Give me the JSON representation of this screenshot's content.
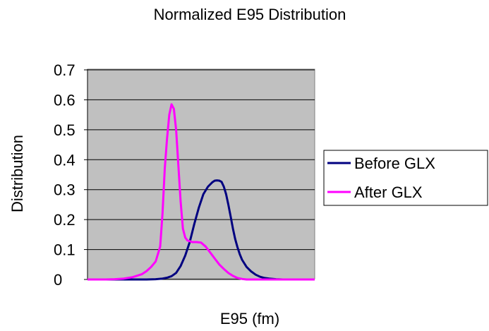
{
  "chart_data": {
    "type": "line",
    "title": "Normalized E95 Distribution",
    "xlabel": "E95 (fm)",
    "ylabel": "Distribution",
    "ylim": [
      0,
      0.7
    ],
    "yticks": [
      "0",
      "0.1",
      "0.2",
      "0.3",
      "0.4",
      "0.5",
      "0.6",
      "0.7"
    ],
    "xlim": [
      0,
      100
    ],
    "grid": true,
    "legend_position": "right",
    "plot_background": "#c0c0c0",
    "series": [
      {
        "name": "Before GLX",
        "color": "#000080",
        "x": [
          0,
          16,
          26,
          30,
          33,
          35,
          37,
          39,
          41,
          43,
          45,
          47,
          49,
          51,
          53,
          55,
          56,
          57,
          58,
          59,
          60,
          61,
          62,
          63,
          64,
          65,
          66,
          67,
          68,
          70,
          72,
          74,
          76,
          78,
          80,
          83,
          86,
          90,
          95,
          100
        ],
        "y": [
          0,
          0,
          0,
          0.001,
          0.003,
          0.006,
          0.011,
          0.022,
          0.045,
          0.08,
          0.125,
          0.185,
          0.24,
          0.285,
          0.31,
          0.325,
          0.33,
          0.331,
          0.33,
          0.326,
          0.31,
          0.285,
          0.25,
          0.21,
          0.17,
          0.135,
          0.108,
          0.085,
          0.066,
          0.042,
          0.027,
          0.016,
          0.009,
          0.005,
          0.003,
          0.001,
          0,
          0,
          0,
          0
        ]
      },
      {
        "name": "After GLX",
        "color": "#ff00ff",
        "x": [
          0,
          8,
          12,
          16,
          20,
          24,
          26,
          28,
          30,
          32,
          33,
          34,
          35,
          36,
          37,
          38,
          39,
          40,
          41,
          42,
          43,
          44,
          45,
          46,
          47,
          48,
          49,
          50,
          52,
          54,
          56,
          58,
          60,
          62,
          64,
          66,
          68,
          70,
          74,
          78,
          85,
          100
        ],
        "y": [
          0,
          0,
          0.001,
          0.003,
          0.008,
          0.018,
          0.028,
          0.042,
          0.06,
          0.11,
          0.22,
          0.37,
          0.47,
          0.55,
          0.585,
          0.57,
          0.5,
          0.38,
          0.26,
          0.17,
          0.14,
          0.13,
          0.128,
          0.125,
          0.125,
          0.125,
          0.124,
          0.123,
          0.11,
          0.09,
          0.07,
          0.05,
          0.035,
          0.022,
          0.012,
          0.005,
          0.002,
          0,
          0,
          0,
          0,
          0
        ]
      }
    ]
  }
}
